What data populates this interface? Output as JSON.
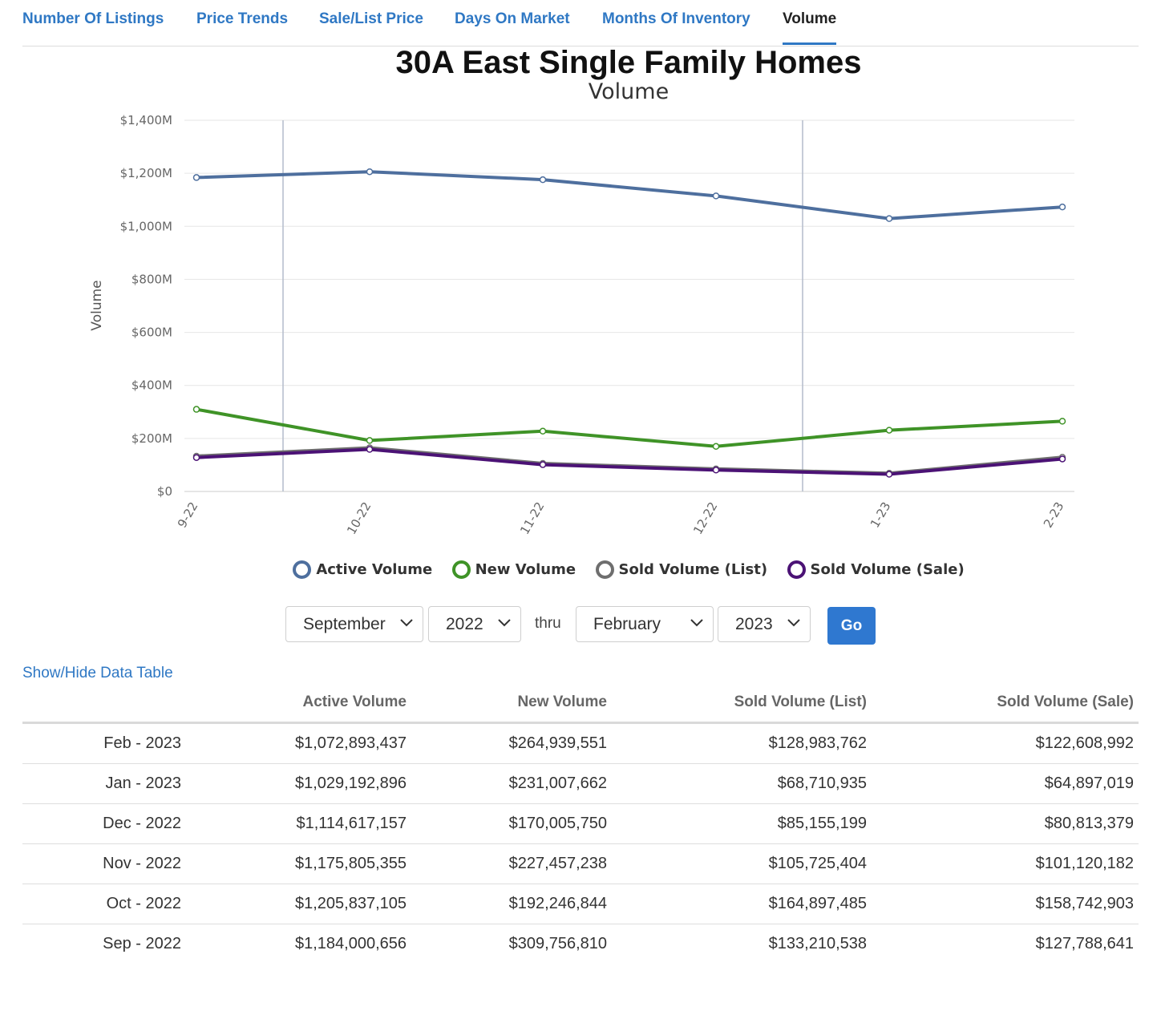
{
  "tabs": [
    {
      "label": "Number Of Listings"
    },
    {
      "label": "Price Trends"
    },
    {
      "label": "Sale/List Price"
    },
    {
      "label": "Days On Market"
    },
    {
      "label": "Months Of Inventory"
    },
    {
      "label": "Volume"
    }
  ],
  "active_tab": "Volume",
  "chart_data": {
    "type": "line",
    "title": "30A East Single Family Homes",
    "subtitle": "Volume",
    "ylabel": "Volume",
    "xlabel": "",
    "categories": [
      "9-22",
      "10-22",
      "11-22",
      "12-22",
      "1-23",
      "2-23"
    ],
    "ylim": [
      0,
      1400000000
    ],
    "yticks": [
      0,
      200000000,
      400000000,
      600000000,
      800000000,
      1000000000,
      1200000000,
      1400000000
    ],
    "ytick_labels": [
      "$0",
      "$200M",
      "$400M",
      "$600M",
      "$800M",
      "$1,000M",
      "$1,200M",
      "$1,400M"
    ],
    "series": [
      {
        "name": "Active Volume",
        "color": "#4e6f9e",
        "values": [
          1184000656,
          1205837105,
          1175805355,
          1114617157,
          1029192896,
          1072893437
        ]
      },
      {
        "name": "New Volume",
        "color": "#3f9327",
        "values": [
          309756810,
          192246844,
          227457238,
          170005750,
          231007662,
          264939551
        ]
      },
      {
        "name": "Sold Volume (List)",
        "color": "#6e6e6e",
        "values": [
          133210538,
          164897485,
          105725404,
          85155199,
          68710935,
          128983762
        ]
      },
      {
        "name": "Sold Volume (Sale)",
        "color": "#4b1275",
        "values": [
          127788641,
          158742903,
          101120182,
          80813379,
          64897019,
          122608992
        ]
      }
    ],
    "legend": "bottom",
    "grid": true
  },
  "range": {
    "start_month": "September",
    "start_year": "2022",
    "thru_label": "thru",
    "end_month": "February",
    "end_year": "2023",
    "go_label": "Go"
  },
  "table_toggle_label": "Show/Hide Data Table",
  "table": {
    "headers": [
      "",
      "Active Volume",
      "New Volume",
      "Sold Volume (List)",
      "Sold Volume (Sale)"
    ],
    "rows": [
      [
        "Feb - 2023",
        "$1,072,893,437",
        "$264,939,551",
        "$128,983,762",
        "$122,608,992"
      ],
      [
        "Jan - 2023",
        "$1,029,192,896",
        "$231,007,662",
        "$68,710,935",
        "$64,897,019"
      ],
      [
        "Dec - 2022",
        "$1,114,617,157",
        "$170,005,750",
        "$85,155,199",
        "$80,813,379"
      ],
      [
        "Nov - 2022",
        "$1,175,805,355",
        "$227,457,238",
        "$105,725,404",
        "$101,120,182"
      ],
      [
        "Oct - 2022",
        "$1,205,837,105",
        "$192,246,844",
        "$164,897,485",
        "$158,742,903"
      ],
      [
        "Sep - 2022",
        "$1,184,000,656",
        "$309,756,810",
        "$133,210,538",
        "$127,788,641"
      ]
    ]
  }
}
